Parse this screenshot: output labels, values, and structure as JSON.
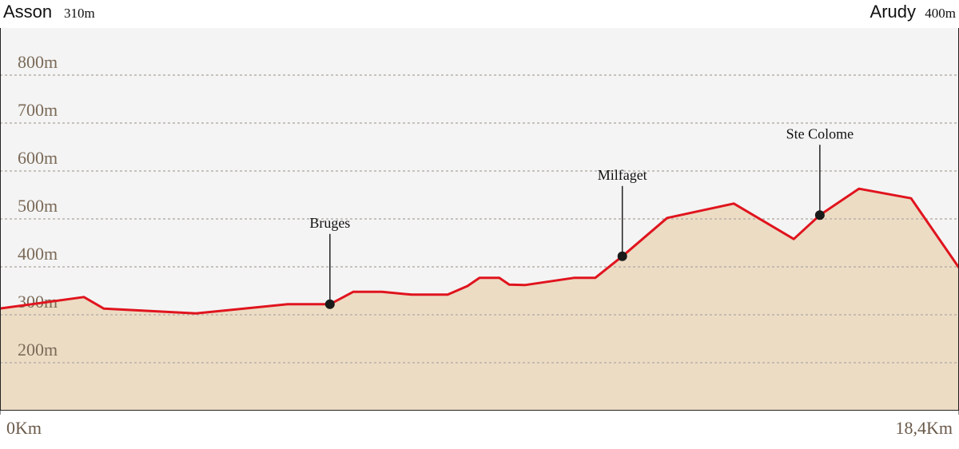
{
  "chart_data": {
    "type": "area",
    "start": {
      "name": "Asson",
      "elevation": "310m"
    },
    "end": {
      "name": "Arudy",
      "elevation": "400m"
    },
    "x": [
      0,
      1.61,
      1.99,
      3.76,
      5.52,
      6.33,
      6.78,
      7.33,
      7.9,
      8.59,
      8.97,
      9.2,
      9.58,
      9.77,
      10.07,
      11.01,
      11.42,
      11.94,
      12.8,
      14.08,
      15.23,
      15.73,
      16.48,
      17.48,
      18.4
    ],
    "values": [
      313,
      337,
      313,
      303,
      322,
      322,
      348,
      348,
      342,
      342,
      360,
      377,
      377,
      363,
      362,
      377,
      377,
      422,
      502,
      532,
      458,
      508,
      563,
      543,
      398
    ],
    "markers": [
      {
        "name": "Bruges",
        "x": 6.33,
        "value": 322
      },
      {
        "name": "Milfaget",
        "x": 11.94,
        "value": 422
      },
      {
        "name": "Ste Colome",
        "x": 15.73,
        "value": 508
      }
    ],
    "color": "#e0141e",
    "fill": "#ecdcc4",
    "xlim": [
      0,
      18.4
    ],
    "xticks": [
      {
        "value": 0,
        "label": "0Km"
      },
      {
        "value": 18.4,
        "label": "18,4Km"
      }
    ],
    "ylim": [
      100,
      900
    ],
    "yticks": [
      {
        "value": 200,
        "label": "200m"
      },
      {
        "value": 300,
        "label": "300m"
      },
      {
        "value": 400,
        "label": "400m"
      },
      {
        "value": 500,
        "label": "500m"
      },
      {
        "value": 600,
        "label": "600m"
      },
      {
        "value": 700,
        "label": "700m"
      },
      {
        "value": 800,
        "label": "800m"
      }
    ],
    "grid": true
  }
}
